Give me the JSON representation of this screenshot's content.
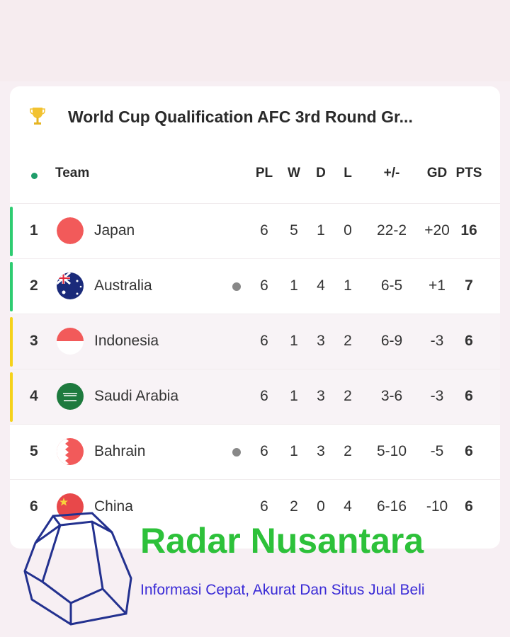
{
  "header": {
    "title": "World Cup Qualification AFC 3rd Round Gr...",
    "icon": "trophy-icon"
  },
  "columns": {
    "team": "Team",
    "pl": "PL",
    "w": "W",
    "d": "D",
    "l": "L",
    "goals": "+/-",
    "gd": "GD",
    "pts": "PTS"
  },
  "colors": {
    "qualify": "#2ecc71",
    "playoff": "#f5d21b",
    "header_dot": "#1f9d6a"
  },
  "rows": [
    {
      "rank": "1",
      "team": "Japan",
      "pl": "6",
      "w": "5",
      "d": "1",
      "l": "0",
      "goals": "22-2",
      "gd": "+20",
      "pts": "16",
      "zone": "qualify",
      "live": false
    },
    {
      "rank": "2",
      "team": "Australia",
      "pl": "6",
      "w": "1",
      "d": "4",
      "l": "1",
      "goals": "6-5",
      "gd": "+1",
      "pts": "7",
      "zone": "qualify",
      "live": true
    },
    {
      "rank": "3",
      "team": "Indonesia",
      "pl": "6",
      "w": "1",
      "d": "3",
      "l": "2",
      "goals": "6-9",
      "gd": "-3",
      "pts": "6",
      "zone": "playoff",
      "live": false
    },
    {
      "rank": "4",
      "team": "Saudi Arabia",
      "pl": "6",
      "w": "1",
      "d": "3",
      "l": "2",
      "goals": "3-6",
      "gd": "-3",
      "pts": "6",
      "zone": "playoff",
      "live": false
    },
    {
      "rank": "5",
      "team": "Bahrain",
      "pl": "6",
      "w": "1",
      "d": "3",
      "l": "2",
      "goals": "5-10",
      "gd": "-5",
      "pts": "6",
      "zone": "none",
      "live": true
    },
    {
      "rank": "6",
      "team": "China",
      "pl": "6",
      "w": "2",
      "d": "0",
      "l": "4",
      "goals": "6-16",
      "gd": "-10",
      "pts": "6",
      "zone": "none",
      "live": false
    }
  ],
  "watermark": {
    "brand": "Radar Nusantara",
    "tagline": "Informasi Cepat, Akurat Dan Situs Jual Beli"
  }
}
